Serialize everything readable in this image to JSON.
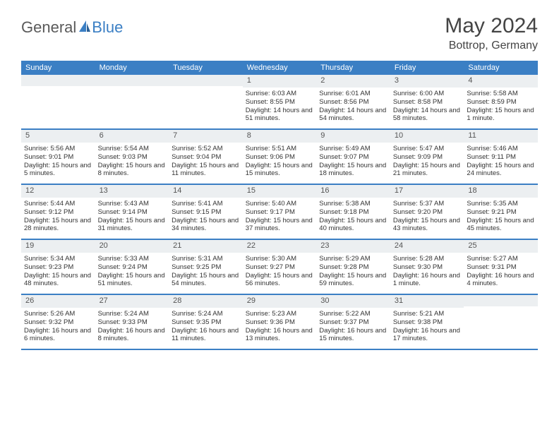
{
  "brand": {
    "part1": "General",
    "part2": "Blue"
  },
  "title": {
    "month": "May 2024",
    "location": "Bottrop, Germany"
  },
  "colors": {
    "header_bg": "#3b7fc4",
    "header_text": "#ffffff",
    "daynum_bg": "#eceff1",
    "row_border": "#3b7fc4",
    "body_text": "#333333",
    "title_text": "#444444",
    "logo_gray": "#5a5a5a",
    "logo_blue": "#3b7fc4",
    "page_bg": "#ffffff"
  },
  "typography": {
    "title_fontsize": 30,
    "location_fontsize": 16,
    "dow_fontsize": 11,
    "daynum_fontsize": 11,
    "body_fontsize": 9.5,
    "logo_fontsize": 22
  },
  "layout": {
    "columns": 7,
    "weeks": 5,
    "cell_min_height": 76
  },
  "days_of_week": [
    "Sunday",
    "Monday",
    "Tuesday",
    "Wednesday",
    "Thursday",
    "Friday",
    "Saturday"
  ],
  "weeks": [
    [
      {
        "num": "",
        "sunrise": "",
        "sunset": "",
        "daylight": ""
      },
      {
        "num": "",
        "sunrise": "",
        "sunset": "",
        "daylight": ""
      },
      {
        "num": "",
        "sunrise": "",
        "sunset": "",
        "daylight": ""
      },
      {
        "num": "1",
        "sunrise": "Sunrise: 6:03 AM",
        "sunset": "Sunset: 8:55 PM",
        "daylight": "Daylight: 14 hours and 51 minutes."
      },
      {
        "num": "2",
        "sunrise": "Sunrise: 6:01 AM",
        "sunset": "Sunset: 8:56 PM",
        "daylight": "Daylight: 14 hours and 54 minutes."
      },
      {
        "num": "3",
        "sunrise": "Sunrise: 6:00 AM",
        "sunset": "Sunset: 8:58 PM",
        "daylight": "Daylight: 14 hours and 58 minutes."
      },
      {
        "num": "4",
        "sunrise": "Sunrise: 5:58 AM",
        "sunset": "Sunset: 8:59 PM",
        "daylight": "Daylight: 15 hours and 1 minute."
      }
    ],
    [
      {
        "num": "5",
        "sunrise": "Sunrise: 5:56 AM",
        "sunset": "Sunset: 9:01 PM",
        "daylight": "Daylight: 15 hours and 5 minutes."
      },
      {
        "num": "6",
        "sunrise": "Sunrise: 5:54 AM",
        "sunset": "Sunset: 9:03 PM",
        "daylight": "Daylight: 15 hours and 8 minutes."
      },
      {
        "num": "7",
        "sunrise": "Sunrise: 5:52 AM",
        "sunset": "Sunset: 9:04 PM",
        "daylight": "Daylight: 15 hours and 11 minutes."
      },
      {
        "num": "8",
        "sunrise": "Sunrise: 5:51 AM",
        "sunset": "Sunset: 9:06 PM",
        "daylight": "Daylight: 15 hours and 15 minutes."
      },
      {
        "num": "9",
        "sunrise": "Sunrise: 5:49 AM",
        "sunset": "Sunset: 9:07 PM",
        "daylight": "Daylight: 15 hours and 18 minutes."
      },
      {
        "num": "10",
        "sunrise": "Sunrise: 5:47 AM",
        "sunset": "Sunset: 9:09 PM",
        "daylight": "Daylight: 15 hours and 21 minutes."
      },
      {
        "num": "11",
        "sunrise": "Sunrise: 5:46 AM",
        "sunset": "Sunset: 9:11 PM",
        "daylight": "Daylight: 15 hours and 24 minutes."
      }
    ],
    [
      {
        "num": "12",
        "sunrise": "Sunrise: 5:44 AM",
        "sunset": "Sunset: 9:12 PM",
        "daylight": "Daylight: 15 hours and 28 minutes."
      },
      {
        "num": "13",
        "sunrise": "Sunrise: 5:43 AM",
        "sunset": "Sunset: 9:14 PM",
        "daylight": "Daylight: 15 hours and 31 minutes."
      },
      {
        "num": "14",
        "sunrise": "Sunrise: 5:41 AM",
        "sunset": "Sunset: 9:15 PM",
        "daylight": "Daylight: 15 hours and 34 minutes."
      },
      {
        "num": "15",
        "sunrise": "Sunrise: 5:40 AM",
        "sunset": "Sunset: 9:17 PM",
        "daylight": "Daylight: 15 hours and 37 minutes."
      },
      {
        "num": "16",
        "sunrise": "Sunrise: 5:38 AM",
        "sunset": "Sunset: 9:18 PM",
        "daylight": "Daylight: 15 hours and 40 minutes."
      },
      {
        "num": "17",
        "sunrise": "Sunrise: 5:37 AM",
        "sunset": "Sunset: 9:20 PM",
        "daylight": "Daylight: 15 hours and 43 minutes."
      },
      {
        "num": "18",
        "sunrise": "Sunrise: 5:35 AM",
        "sunset": "Sunset: 9:21 PM",
        "daylight": "Daylight: 15 hours and 45 minutes."
      }
    ],
    [
      {
        "num": "19",
        "sunrise": "Sunrise: 5:34 AM",
        "sunset": "Sunset: 9:23 PM",
        "daylight": "Daylight: 15 hours and 48 minutes."
      },
      {
        "num": "20",
        "sunrise": "Sunrise: 5:33 AM",
        "sunset": "Sunset: 9:24 PM",
        "daylight": "Daylight: 15 hours and 51 minutes."
      },
      {
        "num": "21",
        "sunrise": "Sunrise: 5:31 AM",
        "sunset": "Sunset: 9:25 PM",
        "daylight": "Daylight: 15 hours and 54 minutes."
      },
      {
        "num": "22",
        "sunrise": "Sunrise: 5:30 AM",
        "sunset": "Sunset: 9:27 PM",
        "daylight": "Daylight: 15 hours and 56 minutes."
      },
      {
        "num": "23",
        "sunrise": "Sunrise: 5:29 AM",
        "sunset": "Sunset: 9:28 PM",
        "daylight": "Daylight: 15 hours and 59 minutes."
      },
      {
        "num": "24",
        "sunrise": "Sunrise: 5:28 AM",
        "sunset": "Sunset: 9:30 PM",
        "daylight": "Daylight: 16 hours and 1 minute."
      },
      {
        "num": "25",
        "sunrise": "Sunrise: 5:27 AM",
        "sunset": "Sunset: 9:31 PM",
        "daylight": "Daylight: 16 hours and 4 minutes."
      }
    ],
    [
      {
        "num": "26",
        "sunrise": "Sunrise: 5:26 AM",
        "sunset": "Sunset: 9:32 PM",
        "daylight": "Daylight: 16 hours and 6 minutes."
      },
      {
        "num": "27",
        "sunrise": "Sunrise: 5:24 AM",
        "sunset": "Sunset: 9:33 PM",
        "daylight": "Daylight: 16 hours and 8 minutes."
      },
      {
        "num": "28",
        "sunrise": "Sunrise: 5:24 AM",
        "sunset": "Sunset: 9:35 PM",
        "daylight": "Daylight: 16 hours and 11 minutes."
      },
      {
        "num": "29",
        "sunrise": "Sunrise: 5:23 AM",
        "sunset": "Sunset: 9:36 PM",
        "daylight": "Daylight: 16 hours and 13 minutes."
      },
      {
        "num": "30",
        "sunrise": "Sunrise: 5:22 AM",
        "sunset": "Sunset: 9:37 PM",
        "daylight": "Daylight: 16 hours and 15 minutes."
      },
      {
        "num": "31",
        "sunrise": "Sunrise: 5:21 AM",
        "sunset": "Sunset: 9:38 PM",
        "daylight": "Daylight: 16 hours and 17 minutes."
      },
      {
        "num": "",
        "sunrise": "",
        "sunset": "",
        "daylight": ""
      }
    ]
  ]
}
